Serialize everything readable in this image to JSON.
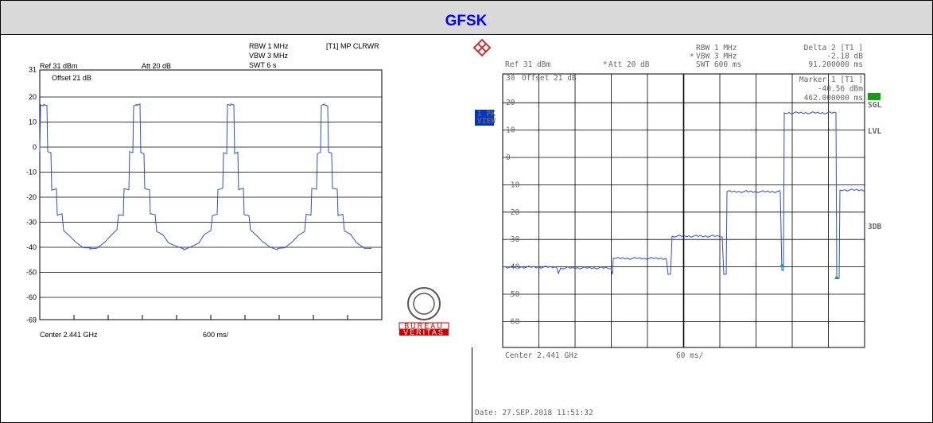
{
  "header": {
    "title": "GFSK"
  },
  "left_plot": {
    "settings": [
      "RBW 1 MHz",
      "VBW 3 MHz",
      "SWT 6 s"
    ],
    "trace_mode": "[T1] MP CLRWR",
    "ref": "Ref 31 dBm",
    "att": "Att 20 dB",
    "offset": "Offset 21 dB",
    "y_labels": [
      "31",
      "20",
      "10",
      "0",
      "-10",
      "-20",
      "-30",
      "-40",
      "-50",
      "-60",
      "-69"
    ],
    "center": "Center 2.441 GHz",
    "span": "600 ms/",
    "logo": [
      "BUREAU",
      "VERITAS"
    ]
  },
  "right_plot": {
    "settings": [
      "RBW 1 MHz",
      "VBW 3 MHz",
      "SWT 600 ms"
    ],
    "delta": [
      "Delta 2 [T1 ]",
      "-2.18 dB",
      "91.200000 ms"
    ],
    "ref": "Ref 31 dBm",
    "att": "Att 20 dB",
    "offset": "Offset 21 dB",
    "marker": [
      "Marker 1 [T1 ]",
      "-40.56 dBm",
      "462.000000 ms"
    ],
    "view": [
      "1 PK",
      "VIEW"
    ],
    "side": [
      "A",
      "SGL",
      "LVL",
      "3DB"
    ],
    "y_labels": [
      "30",
      "20",
      "10",
      "0",
      "-10",
      "-20",
      "-30",
      "-40",
      "-50",
      "-60"
    ],
    "center": "Center 2.441 GHz",
    "span": "60 ms/",
    "date": "Date: 27.SEP.2018 11:51:32"
  }
}
